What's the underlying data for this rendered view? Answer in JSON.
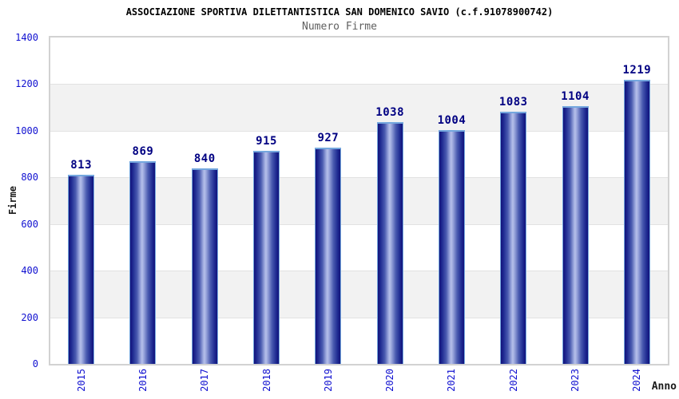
{
  "chart_data": {
    "type": "bar",
    "title": "ASSOCIAZIONE SPORTIVA DILETTANTISTICA SAN DOMENICO SAVIO (c.f.91078900742)",
    "subtitle": "Numero Firme",
    "xlabel": "Anno",
    "ylabel": "Firme",
    "categories": [
      "2015",
      "2016",
      "2017",
      "2018",
      "2019",
      "2020",
      "2021",
      "2022",
      "2023",
      "2024"
    ],
    "values": [
      813,
      869,
      840,
      915,
      927,
      1038,
      1004,
      1083,
      1104,
      1219
    ],
    "ylim": [
      0,
      1400
    ],
    "yticks": [
      0,
      200,
      400,
      600,
      800,
      1000,
      1200,
      1400
    ],
    "legend": "none",
    "grid": "alternating horizontal bands every 200 units with light gridlines"
  },
  "colors": {
    "title": "#000000",
    "subtitle": "#5f5f5f",
    "tick_label_blue": "#1010d0",
    "value_label_navy": "#000082",
    "axis_title": "#1a1a1a",
    "band_gray": "#f2f2f2",
    "band_white": "#ffffff",
    "gridline": "#e2e2e2",
    "plot_border": "#d2d2d2",
    "bar_border_light_blue": "#74a7de",
    "bar_dark_navy": "#12127b",
    "bar_highlight": "#b6c0ea"
  }
}
